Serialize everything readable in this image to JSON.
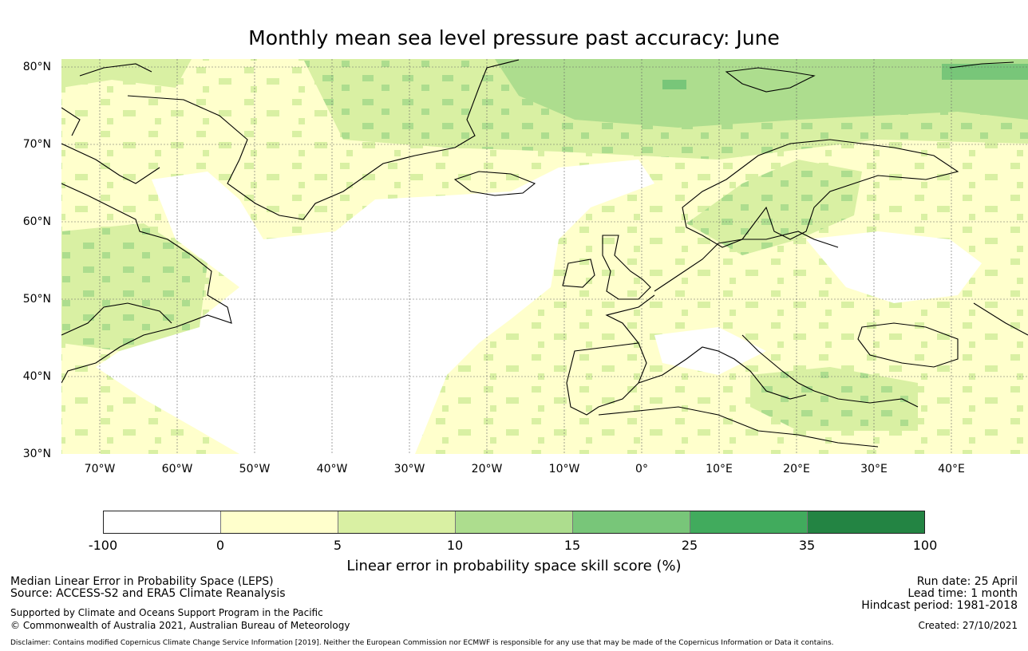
{
  "title": "Monthly mean sea level pressure past accuracy: June",
  "map": {
    "lat_labels": [
      "80°N",
      "70°N",
      "60°N",
      "50°N",
      "40°N",
      "30°N"
    ],
    "lon_labels": [
      "70°W",
      "60°W",
      "50°W",
      "40°W",
      "30°W",
      "20°W",
      "10°W",
      "0°",
      "10°E",
      "20°E",
      "30°E",
      "40°E"
    ],
    "extent": {
      "lon_min": -75,
      "lon_max": 50,
      "lat_min": 30,
      "lat_max": 81
    }
  },
  "colorbar": {
    "ticks": [
      "-100",
      "0",
      "5",
      "10",
      "15",
      "25",
      "35",
      "100"
    ],
    "colors": [
      "#ffffff",
      "#ffffcc",
      "#d9f0a3",
      "#addd8e",
      "#78c679",
      "#41ab5d",
      "#238443"
    ],
    "label": "Linear error in probability space skill score (%)"
  },
  "footer": {
    "left_line1": "Median Linear Error in Probability Space (LEPS)",
    "left_line2": "Source: ACCESS-S2 and ERA5 Climate Reanalysis",
    "left_line3": "Supported by Climate and Oceans Support Program in the Pacific",
    "left_line4": "© Commonwealth of Australia 2021, Australian Bureau of Meteorology",
    "right_line1": "Run date: 25 April",
    "right_line2": "Lead time: 1 month",
    "right_line3": "Hindcast period: 1981-2018",
    "right_line4": "Created: 27/10/2021",
    "disclaimer": "Disclaimer: Contains modified Copernicus Climate Change Service Information [2019]. Neither the European Commission nor ECMWF is responsible for any use that may be made of the Copernicus Information or Data it contains."
  }
}
